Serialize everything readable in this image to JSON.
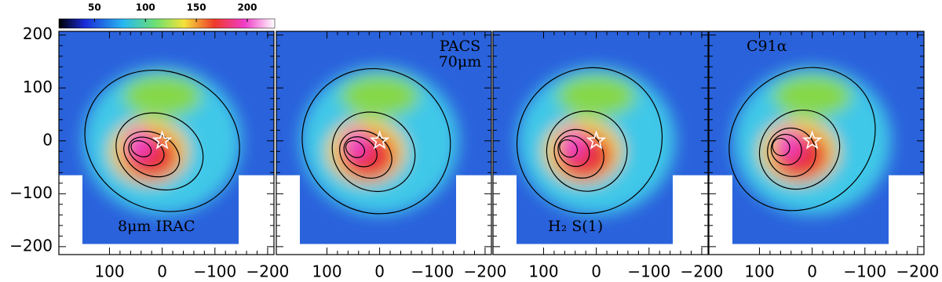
{
  "colorbar": {
    "clim": [
      15,
      227
    ],
    "ticks": [
      50,
      100,
      150,
      200
    ]
  },
  "axes": {
    "xlim": [
      196,
      -212
    ],
    "ylim": [
      -215,
      207
    ],
    "xticks": [
      100,
      0,
      {
        "value": -100,
        "label": "−100"
      },
      {
        "value": -200,
        "label": "−200"
      }
    ],
    "yticks": [
      200,
      100,
      0,
      {
        "value": -100,
        "label": "−100"
      },
      {
        "value": -200,
        "label": "−200"
      }
    ]
  },
  "panels": [
    {
      "label": "8μm IRAC"
    },
    {
      "label": [
        "PACS",
        "70μm"
      ]
    },
    {
      "label": "H₂ S(1)"
    },
    {
      "label": "C91α"
    }
  ]
}
